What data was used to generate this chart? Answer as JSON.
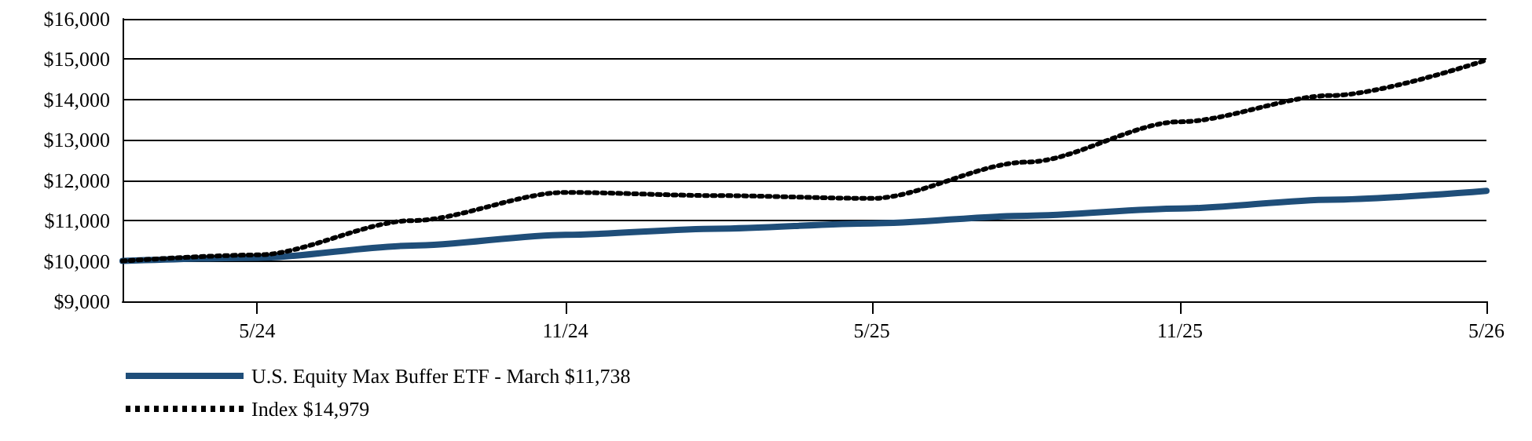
{
  "chart_data": {
    "type": "line",
    "xlim": [
      "2024-03-12",
      "2026-05-31"
    ],
    "xticks": [
      {
        "value": "2024-05-31",
        "label": "5/24"
      },
      {
        "value": "2024-11-30",
        "label": "11/24"
      },
      {
        "value": "2025-05-31",
        "label": "5/25"
      },
      {
        "value": "2025-11-30",
        "label": "11/25"
      },
      {
        "value": "2026-05-31",
        "label": "5/26"
      }
    ],
    "ylim": [
      9000,
      16000
    ],
    "yticks": [
      {
        "value": 9000,
        "label": "$9,000"
      },
      {
        "value": 10000,
        "label": "$10,000"
      },
      {
        "value": 11000,
        "label": "$11,000"
      },
      {
        "value": 12000,
        "label": "$12,000"
      },
      {
        "value": 13000,
        "label": "$13,000"
      },
      {
        "value": 14000,
        "label": "$14,000"
      },
      {
        "value": 15000,
        "label": "$15,000"
      },
      {
        "value": 16000,
        "label": "$16,000"
      }
    ],
    "x": [
      "2024-03-12",
      "2024-05-31",
      "2024-08-31",
      "2024-11-30",
      "2025-02-28",
      "2025-05-31",
      "2025-08-31",
      "2025-11-30",
      "2026-02-28",
      "2026-05-31"
    ],
    "series": [
      {
        "name": "U.S. Equity Max Buffer ETF - March $11,738",
        "color": "#1f4e79",
        "line_style": "solid",
        "values": [
          10000,
          10080,
          10380,
          10650,
          10800,
          10930,
          11120,
          11300,
          11520,
          11738
        ]
      },
      {
        "name": "Index $14,979",
        "color": "#000000",
        "line_style": "dotted",
        "values": [
          10000,
          10150,
          11000,
          11700,
          11620,
          11550,
          12450,
          13450,
          14100,
          14979
        ]
      }
    ],
    "grid": "y",
    "legend": "bottom left",
    "marker": "none"
  }
}
